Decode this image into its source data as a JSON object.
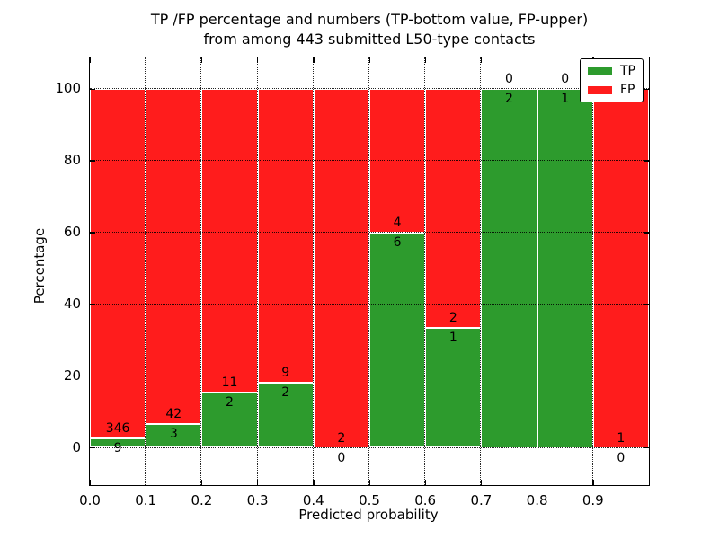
{
  "figure": {
    "title_line1": "TP /FP percentage and numbers (TP-bottom value, FP-upper)",
    "title_line2": "from among 443 submitted L50-type contacts"
  },
  "chart_data": {
    "type": "bar",
    "variant": "stacked-100-percent-histogram",
    "title": "TP /FP percentage and numbers (TP-bottom value, FP-upper) from among 443 submitted L50-type contacts",
    "xlabel": "Predicted probability",
    "ylabel": "Percentage",
    "bin_edges": [
      0.0,
      0.1,
      0.2,
      0.3,
      0.4,
      0.5,
      0.6,
      0.7,
      0.8,
      0.9,
      1.0
    ],
    "x_tick_labels": [
      "0.0",
      "0.1",
      "0.2",
      "0.3",
      "0.4",
      "0.5",
      "0.6",
      "0.7",
      "0.8",
      "0.9"
    ],
    "y_tick_values": [
      0,
      20,
      40,
      60,
      80,
      100
    ],
    "y_tick_labels": [
      "0",
      "20",
      "40",
      "60",
      "80",
      "100"
    ],
    "xlim": [
      0.0,
      1.0
    ],
    "ylim": [
      -10.5,
      109
    ],
    "grid": "dotted-black-both-axes",
    "bar_edge_color": "#ffffff",
    "annotation_note": "FP count printed above TP/FP boundary, TP count printed below it",
    "total_submitted": 443,
    "series": [
      {
        "name": "TP",
        "color": "#2d9b2d",
        "counts": [
          9,
          3,
          2,
          2,
          0,
          6,
          1,
          2,
          1,
          0
        ]
      },
      {
        "name": "FP",
        "color": "#ff1c1c",
        "counts": [
          346,
          42,
          11,
          9,
          2,
          4,
          2,
          0,
          0,
          1
        ]
      }
    ],
    "tp_percent_heights": [
      2.5,
      6.7,
      15.4,
      18.2,
      0.0,
      60.0,
      33.3,
      100.0,
      100.0,
      0.0
    ],
    "legend": {
      "position": "upper right",
      "entries": [
        "TP",
        "FP"
      ]
    }
  }
}
